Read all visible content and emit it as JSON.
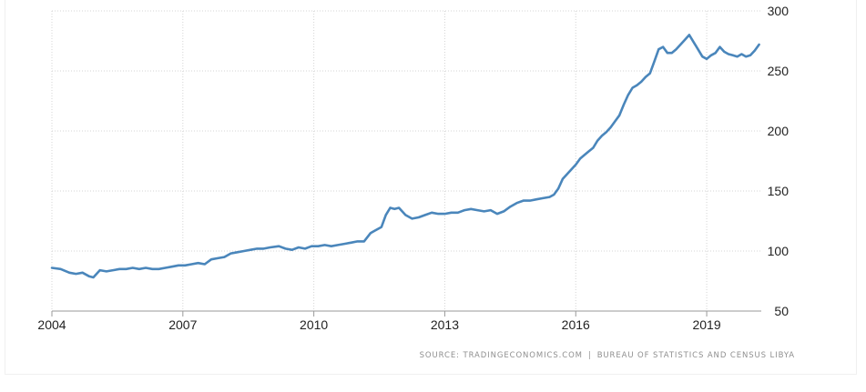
{
  "source": {
    "left": "SOURCE: TRADINGECONOMICS.COM",
    "separator": "|",
    "right": "BUREAU OF STATISTICS AND CENSUS LIBYA"
  },
  "chart_data": {
    "type": "line",
    "title": "",
    "xlabel": "",
    "ylabel": "",
    "x_ticks": [
      2004,
      2007,
      2010,
      2013,
      2016,
      2019
    ],
    "y_ticks": [
      50,
      100,
      150,
      200,
      250,
      300
    ],
    "xlim": [
      2004.0,
      2020.25
    ],
    "ylim": [
      50,
      300
    ],
    "grid": true,
    "y_axis_position": "right",
    "line_color": "#4a86bb",
    "series": [
      {
        "x": [
          2004.0,
          2004.2,
          2004.4,
          2004.55,
          2004.7,
          2004.85,
          2004.95,
          2005.1,
          2005.25,
          2005.4,
          2005.55,
          2005.7,
          2005.85,
          2006.0,
          2006.15,
          2006.3,
          2006.45,
          2006.6,
          2006.75,
          2006.9,
          2007.05,
          2007.2,
          2007.35,
          2007.5,
          2007.65,
          2007.8,
          2007.95,
          2008.1,
          2008.25,
          2008.4,
          2008.55,
          2008.7,
          2008.85,
          2009.0,
          2009.2,
          2009.35,
          2009.5,
          2009.65,
          2009.8,
          2009.95,
          2010.1,
          2010.25,
          2010.4,
          2010.55,
          2010.7,
          2010.85,
          2011.0,
          2011.15,
          2011.3,
          2011.45,
          2011.55,
          2011.65,
          2011.75,
          2011.85,
          2011.95,
          2012.1,
          2012.25,
          2012.4,
          2012.55,
          2012.7,
          2012.85,
          2013.0,
          2013.15,
          2013.3,
          2013.45,
          2013.6,
          2013.75,
          2013.9,
          2014.05,
          2014.2,
          2014.35,
          2014.5,
          2014.65,
          2014.8,
          2014.95,
          2015.1,
          2015.25,
          2015.4,
          2015.5,
          2015.6,
          2015.7,
          2015.8,
          2015.9,
          2016.0,
          2016.1,
          2016.2,
          2016.3,
          2016.4,
          2016.5,
          2016.6,
          2016.7,
          2016.8,
          2016.9,
          2017.0,
          2017.1,
          2017.2,
          2017.3,
          2017.4,
          2017.5,
          2017.6,
          2017.7,
          2017.8,
          2017.9,
          2018.0,
          2018.1,
          2018.2,
          2018.3,
          2018.4,
          2018.5,
          2018.6,
          2018.7,
          2018.8,
          2018.9,
          2019.0,
          2019.1,
          2019.2,
          2019.3,
          2019.4,
          2019.5,
          2019.6,
          2019.7,
          2019.8,
          2019.9,
          2020.0,
          2020.1,
          2020.2
        ],
        "y": [
          86,
          85,
          82,
          81,
          82,
          79,
          78,
          84,
          83,
          84,
          85,
          85,
          86,
          85,
          86,
          85,
          85,
          86,
          87,
          88,
          88,
          89,
          90,
          89,
          93,
          94,
          95,
          98,
          99,
          100,
          101,
          102,
          102,
          103,
          104,
          102,
          101,
          103,
          102,
          104,
          104,
          105,
          104,
          105,
          106,
          107,
          108,
          108,
          115,
          118,
          120,
          130,
          136,
          135,
          136,
          130,
          127,
          128,
          130,
          132,
          131,
          131,
          132,
          132,
          134,
          135,
          134,
          133,
          134,
          131,
          133,
          137,
          140,
          142,
          142,
          143,
          144,
          145,
          147,
          152,
          160,
          164,
          168,
          172,
          177,
          180,
          183,
          186,
          192,
          196,
          199,
          203,
          208,
          213,
          222,
          230,
          236,
          238,
          241,
          245,
          248,
          258,
          268,
          270,
          265,
          265,
          268,
          272,
          276,
          280,
          274,
          268,
          262,
          260,
          263,
          265,
          270,
          266,
          264,
          263,
          262,
          264,
          262,
          263,
          267,
          272
        ]
      }
    ]
  }
}
